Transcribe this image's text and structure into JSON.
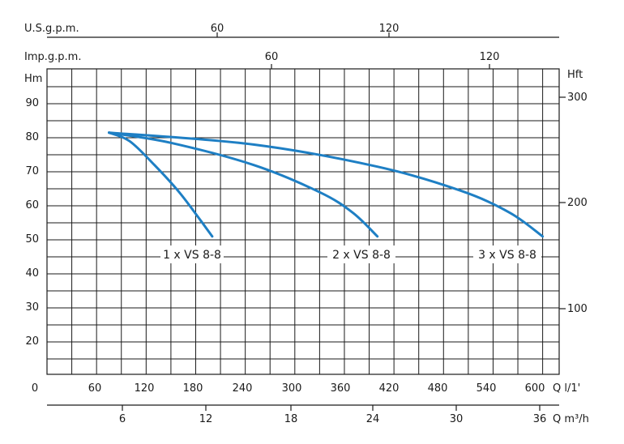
{
  "chart_data": {
    "type": "line",
    "axes": {
      "us_gpm": {
        "label": "U.S.g.p.m.",
        "ticks": [
          "60",
          "120"
        ]
      },
      "imp_gpm": {
        "label": "Imp.g.p.m.",
        "ticks": [
          "60",
          "120"
        ]
      },
      "head_m": {
        "label": "Hm",
        "ticks": [
          "20",
          "30",
          "40",
          "50",
          "60",
          "70",
          "80",
          "90"
        ]
      },
      "head_ft": {
        "label": "Hft",
        "ticks": [
          "100",
          "200",
          "300"
        ]
      },
      "flow_lpm": {
        "label": "Q l/1'",
        "ticks": [
          "0",
          "60",
          "120",
          "180",
          "240",
          "300",
          "360",
          "420",
          "480",
          "540",
          "600"
        ]
      },
      "flow_m3h": {
        "label": "Q m³/h",
        "ticks": [
          "6",
          "12",
          "18",
          "24",
          "30",
          "36"
        ]
      }
    },
    "xlim": [
      0,
      620
    ],
    "ylim": [
      0,
      100
    ],
    "grid": true,
    "series": [
      {
        "name": "1 x VS 8-8",
        "points": [
          [
            75,
            81.5
          ],
          [
            100,
            79
          ],
          [
            130,
            72
          ],
          [
            160,
            64
          ],
          [
            185,
            56
          ],
          [
            200,
            51
          ]
        ]
      },
      {
        "name": "2 x VS 8-8",
        "points": [
          [
            75,
            81.5
          ],
          [
            150,
            78.5
          ],
          [
            250,
            72
          ],
          [
            330,
            64
          ],
          [
            370,
            58
          ],
          [
            400,
            51
          ]
        ]
      },
      {
        "name": "3 x VS 8-8",
        "points": [
          [
            75,
            81.5
          ],
          [
            250,
            78
          ],
          [
            400,
            71.5
          ],
          [
            500,
            64.5
          ],
          [
            560,
            58
          ],
          [
            600,
            51
          ]
        ]
      }
    ],
    "legend": [
      "1 x VS 8-8",
      "2 x VS 8-8",
      "3 x VS 8-8"
    ]
  }
}
